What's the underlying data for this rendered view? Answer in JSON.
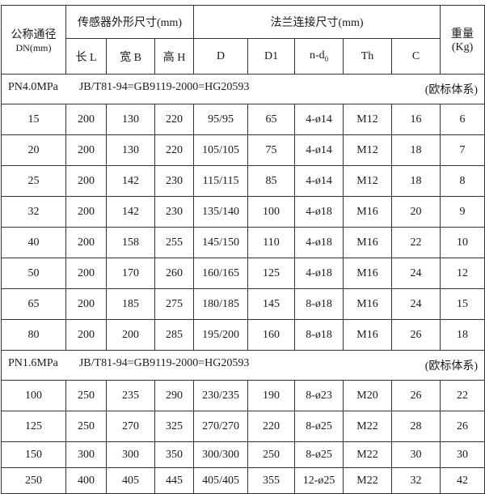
{
  "header": {
    "dn_label": "公称通径",
    "dn_unit": "DN(mm)",
    "sensor_group": "传感器外形尺寸(mm)",
    "flange_group": "法兰连接尺寸(mm)",
    "weight_label": "重量",
    "weight_unit": "(Kg)",
    "cols": [
      "长 L",
      "宽 B",
      "高 H",
      "D",
      "D1",
      "n-d",
      "Th",
      "C"
    ],
    "nd_sub": "0"
  },
  "sections": [
    {
      "pressure": "PN4.0MPa",
      "standard": "JB/T81-94=GB9119-2000=HG20593",
      "system": "(欧标体系)",
      "rows": [
        [
          "15",
          "200",
          "130",
          "220",
          "95/95",
          "65",
          "4-ø14",
          "M12",
          "16",
          "6"
        ],
        [
          "20",
          "200",
          "130",
          "220",
          "105/105",
          "75",
          "4-ø14",
          "M12",
          "18",
          "7"
        ],
        [
          "25",
          "200",
          "142",
          "230",
          "115/115",
          "85",
          "4-ø14",
          "M12",
          "18",
          "8"
        ],
        [
          "32",
          "200",
          "142",
          "230",
          "135/140",
          "100",
          "4-ø18",
          "M16",
          "20",
          "9"
        ],
        [
          "40",
          "200",
          "158",
          "255",
          "145/150",
          "110",
          "4-ø18",
          "M16",
          "22",
          "10"
        ],
        [
          "50",
          "200",
          "170",
          "260",
          "160/165",
          "125",
          "4-ø18",
          "M16",
          "24",
          "12"
        ],
        [
          "65",
          "200",
          "185",
          "275",
          "180/185",
          "145",
          "8-ø18",
          "M16",
          "24",
          "15"
        ],
        [
          "80",
          "200",
          "200",
          "285",
          "195/200",
          "160",
          "8-ø18",
          "M16",
          "26",
          "18"
        ]
      ]
    },
    {
      "pressure": "PN1.6MPa",
      "standard": "JB/T81-94=GB9119-2000=HG20593",
      "system": "(欧标体系)",
      "rows": [
        [
          "100",
          "250",
          "235",
          "290",
          "230/235",
          "190",
          "8-ø23",
          "M20",
          "26",
          "22"
        ],
        [
          "125",
          "250",
          "270",
          "325",
          "270/270",
          "220",
          "8-ø25",
          "M22",
          "28",
          "26"
        ],
        [
          "150",
          "300",
          "300",
          "350",
          "300/300",
          "250",
          "8-ø25",
          "M22",
          "30",
          "30"
        ],
        [
          "250",
          "400",
          "405",
          "445",
          "405/405",
          "355",
          "12-ø25",
          "M22",
          "32",
          "42"
        ]
      ]
    }
  ]
}
